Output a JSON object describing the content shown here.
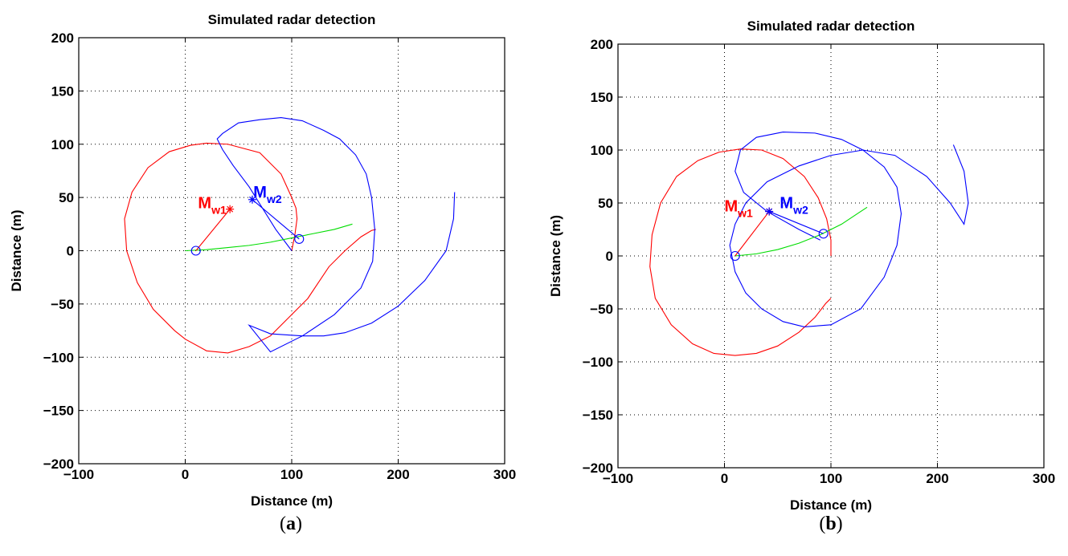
{
  "chart_data": [
    {
      "type": "line",
      "title": "Simulated radar detection",
      "xlabel": "Distance (m)",
      "ylabel": "Distance (m)",
      "xlim": [
        -100,
        300
      ],
      "ylim": [
        -200,
        200
      ],
      "x_ticks": [
        "−100",
        "0",
        "100",
        "200",
        "300"
      ],
      "y_ticks": [
        "200",
        "150",
        "100",
        "50",
        "0",
        "−50",
        "−100",
        "−150",
        "−200"
      ],
      "grid": true,
      "caption": {
        "open": "(",
        "letter": "a",
        "close": ")"
      },
      "series": [
        {
          "color": "#ff0000",
          "x": [
            100,
            103,
            105,
            104,
            100,
            90,
            70,
            40,
            20,
            5,
            -15,
            -35,
            -50,
            -57,
            -55,
            -45,
            -30,
            -10,
            0,
            20,
            40,
            60,
            80,
            100,
            115,
            125,
            135,
            150,
            165,
            175,
            179,
            179
          ],
          "y": [
            0,
            15,
            30,
            40,
            50,
            72,
            92,
            100,
            101,
            99,
            93,
            78,
            55,
            30,
            0,
            -30,
            -55,
            -75,
            -83,
            -94,
            -96,
            -90,
            -80,
            -60,
            -45,
            -30,
            -15,
            0,
            13,
            19,
            20,
            20
          ]
        },
        {
          "color": "#0000ff",
          "x": [
            100,
            85,
            60,
            45,
            35,
            30,
            35,
            50,
            70,
            90,
            110,
            130,
            145,
            160,
            170,
            175,
            178,
            176,
            165,
            140,
            110,
            80,
            60,
            80,
            110,
            130,
            150,
            175,
            200,
            225,
            245,
            252,
            253
          ],
          "y": [
            0,
            20,
            60,
            80,
            95,
            105,
            110,
            120,
            123,
            125,
            122,
            113,
            105,
            90,
            72,
            50,
            20,
            -10,
            -35,
            -60,
            -80,
            -95,
            -70,
            -78,
            -80,
            -80,
            -77,
            -68,
            -52,
            -28,
            0,
            30,
            55
          ]
        },
        {
          "color": "#00dd00",
          "x": [
            0,
            20,
            40,
            60,
            80,
            100,
            120,
            140,
            157
          ],
          "y": [
            0,
            1,
            3,
            5,
            8,
            12,
            16,
            20,
            25
          ]
        }
      ],
      "segments": [
        {
          "color": "#ff0000",
          "from": [
            10,
            0
          ],
          "to": [
            42,
            39
          ]
        },
        {
          "color": "#0000ff",
          "from": [
            63,
            48
          ],
          "to": [
            107,
            11
          ]
        }
      ],
      "points": [
        {
          "marker": "circle",
          "color": "#0000ff",
          "x": 10,
          "y": 0
        },
        {
          "marker": "circle",
          "color": "#0000ff",
          "x": 107,
          "y": 11
        },
        {
          "marker": "asterisk",
          "color": "#ff0000",
          "x": 42,
          "y": 39
        },
        {
          "marker": "asterisk",
          "color": "#0000ff",
          "x": 63,
          "y": 48
        }
      ],
      "annotations": [
        {
          "text": "M",
          "sub": "w1",
          "color": "#ff0000",
          "x": 12,
          "y": 40
        },
        {
          "text": "M",
          "sub": "w2",
          "color": "#0000ff",
          "x": 64,
          "y": 50
        }
      ]
    },
    {
      "type": "line",
      "title": "Simulated radar detection",
      "xlabel": "Distance (m)",
      "ylabel": "Distance (m)",
      "xlim": [
        -100,
        300
      ],
      "ylim": [
        -200,
        200
      ],
      "x_ticks": [
        "−100",
        "0",
        "100",
        "200",
        "300"
      ],
      "y_ticks": [
        "200",
        "150",
        "100",
        "50",
        "0",
        "−50",
        "−100",
        "−150",
        "−200"
      ],
      "grid": true,
      "caption": {
        "open": "(",
        "letter": "b",
        "close": ")"
      },
      "series": [
        {
          "color": "#ff0000",
          "x": [
            100,
            100,
            96,
            88,
            75,
            55,
            35,
            15,
            -5,
            -25,
            -45,
            -60,
            -68,
            -70,
            -65,
            -50,
            -30,
            -10,
            10,
            30,
            50,
            70,
            85,
            95,
            100
          ],
          "y": [
            0,
            15,
            35,
            55,
            75,
            92,
            100,
            101,
            98,
            90,
            75,
            50,
            20,
            -10,
            -40,
            -65,
            -83,
            -92,
            -94,
            -92,
            -85,
            -72,
            -58,
            -45,
            -40
          ]
        },
        {
          "color": "#0000ff",
          "x": [
            90,
            70,
            40,
            18,
            10,
            15,
            30,
            55,
            85,
            110,
            130,
            150,
            162,
            166,
            162,
            150,
            128,
            100,
            75,
            55,
            35,
            20,
            10,
            5,
            10,
            20,
            40,
            70,
            100,
            130,
            160,
            190,
            212,
            225,
            229,
            225,
            215
          ],
          "y": [
            15,
            25,
            42,
            60,
            80,
            100,
            112,
            117,
            116,
            110,
            100,
            84,
            65,
            40,
            10,
            -20,
            -50,
            -65,
            -67,
            -62,
            -50,
            -35,
            -15,
            10,
            30,
            50,
            70,
            85,
            95,
            100,
            95,
            75,
            50,
            30,
            50,
            80,
            105
          ]
        },
        {
          "color": "#00dd00",
          "x": [
            10,
            30,
            50,
            70,
            90,
            110,
            125,
            134
          ],
          "y": [
            0,
            2,
            6,
            12,
            20,
            30,
            40,
            46
          ]
        }
      ],
      "segments": [
        {
          "color": "#ff0000",
          "from": [
            10,
            0
          ],
          "to": [
            42,
            42
          ]
        },
        {
          "color": "#0000ff",
          "from": [
            42,
            42
          ],
          "to": [
            93,
            21
          ]
        }
      ],
      "points": [
        {
          "marker": "circle",
          "color": "#0000ff",
          "x": 10,
          "y": 0
        },
        {
          "marker": "circle",
          "color": "#0000ff",
          "x": 93,
          "y": 21
        },
        {
          "marker": "asterisk",
          "color": "#ff0000",
          "x": 42,
          "y": 42
        },
        {
          "marker": "asterisk",
          "color": "#0000ff",
          "x": 42,
          "y": 42
        }
      ],
      "annotations": [
        {
          "text": "M",
          "sub": "w1",
          "color": "#ff0000",
          "x": 0,
          "y": 42
        },
        {
          "text": "M",
          "sub": "w2",
          "color": "#0000ff",
          "x": 52,
          "y": 45
        }
      ]
    }
  ]
}
